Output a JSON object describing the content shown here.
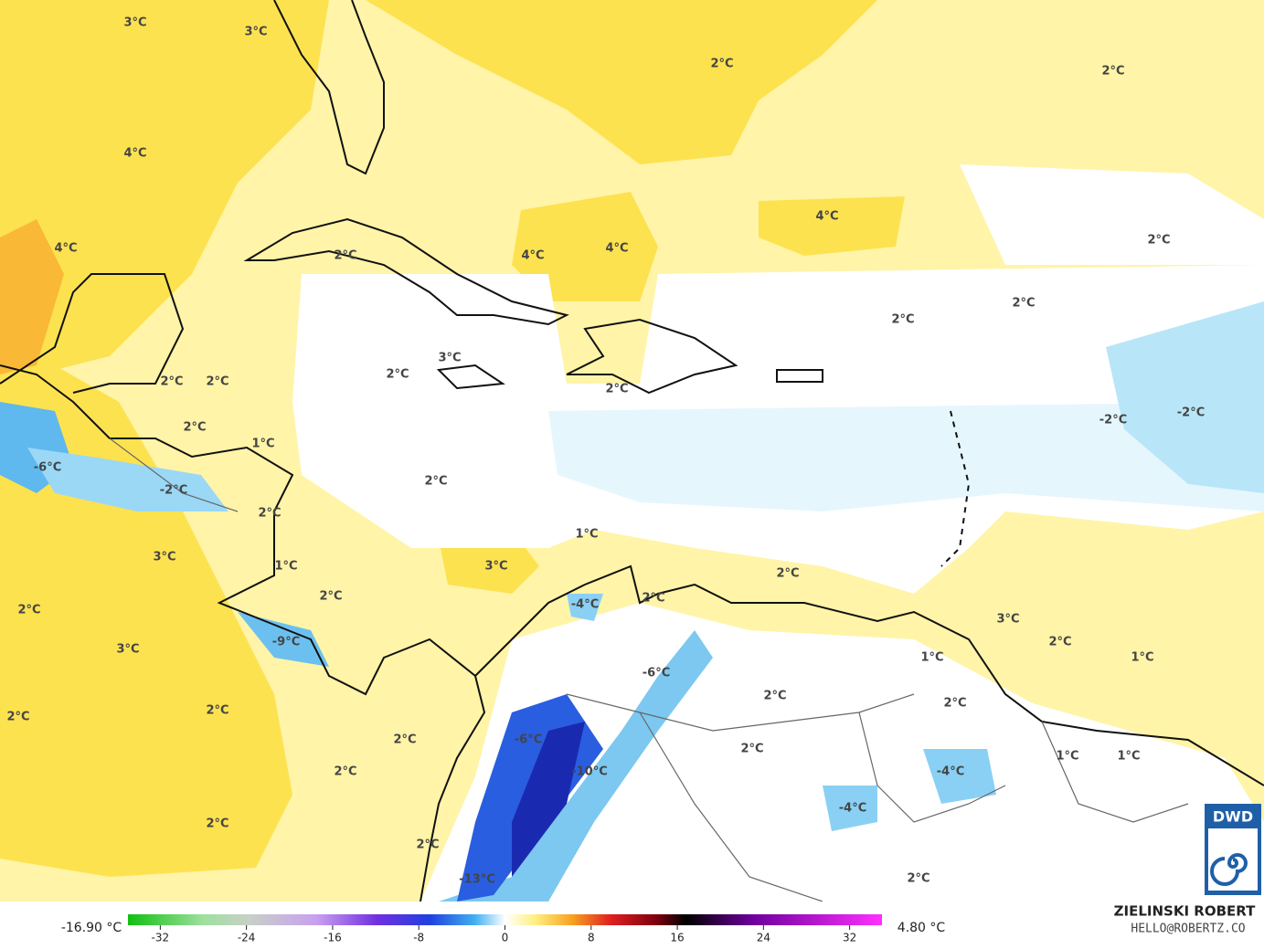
{
  "map_labels": [
    "3°C",
    "3°C",
    "2°C",
    "2°C",
    "4°C",
    "4°C",
    "4°C",
    "2°C",
    "4°C",
    "4°C",
    "2°C",
    "2°C",
    "2°C",
    "3°C",
    "2°C",
    "2°C",
    "2°C",
    "2°C",
    "2°C",
    "-2°C",
    "-2°C",
    "1°C",
    "-6°C",
    "-2°C",
    "2°C",
    "2°C",
    "1°C",
    "3°C",
    "3°C",
    "1°C",
    "2°C",
    "2°C",
    "-4°C",
    "2°C",
    "2°C",
    "3°C",
    "-9°C",
    "2°C",
    "1°C",
    "1°C",
    "3°C",
    "-6°C",
    "2°C",
    "2°C",
    "2°C",
    "2°C",
    "2°C",
    "-6°C",
    "2°C",
    "1°C",
    "1°C",
    "-10°C",
    "2°C",
    "-4°C",
    "-4°C",
    "2°C",
    "2°C",
    "-13°C",
    "2°C"
  ],
  "colorbar": {
    "min_label": "-16.90 °C",
    "max_label": "4.80 °C",
    "range": [
      -35,
      35
    ],
    "ticks": [
      -32,
      -24,
      -16,
      -8,
      0,
      8,
      16,
      24,
      32
    ]
  },
  "credit": {
    "name": "ZIELINSKI ROBERT",
    "email": "HELLO@ROBERTZ.CO",
    "logo": "DWD"
  }
}
